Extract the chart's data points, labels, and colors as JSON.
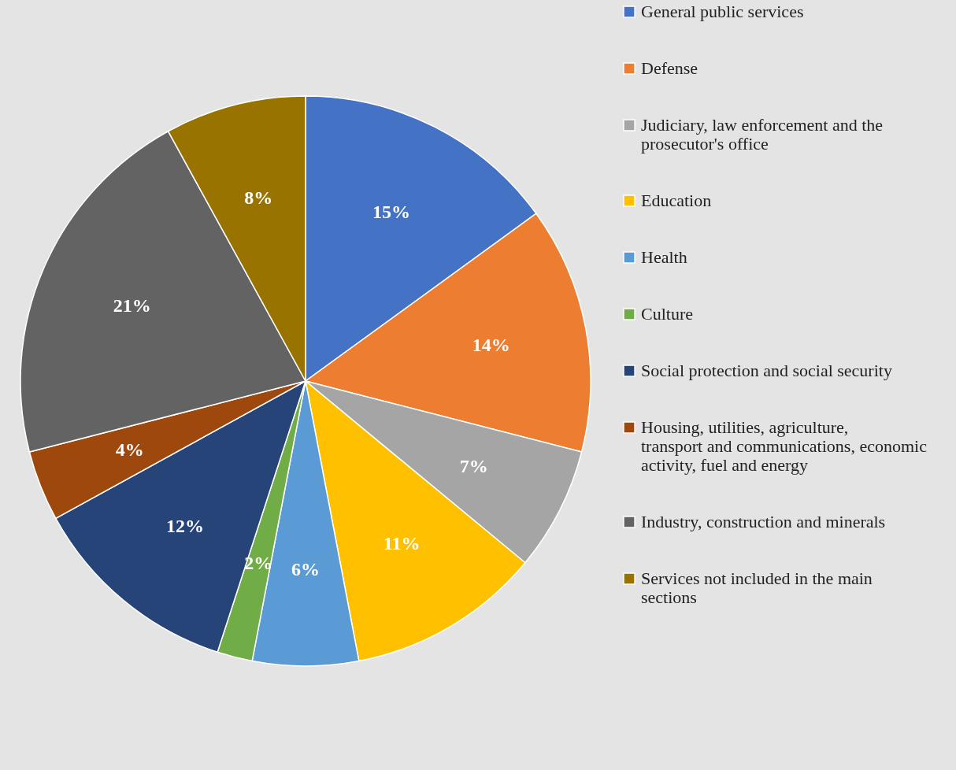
{
  "chart_data": {
    "type": "pie",
    "categories": [
      "General public services",
      "Defense",
      "Judiciary, law enforcement and the prosecutor's office",
      "Education",
      "Health",
      "Culture",
      "Social protection and social security",
      "Housing, utilities, agriculture, transport and communications, economic activity, fuel and energy",
      "Industry, construction and minerals",
      "Services not included in the main sections"
    ],
    "values": [
      15,
      14,
      7,
      11,
      6,
      2,
      12,
      4,
      21,
      8
    ],
    "value_labels": [
      "15%",
      "14%",
      "7%",
      "11%",
      "6%",
      "2%",
      "12%",
      "4%",
      "21%",
      "8%"
    ],
    "colors": [
      "#4472c4",
      "#ed7d31",
      "#a5a5a5",
      "#ffc000",
      "#5b9bd5",
      "#70ad47",
      "#264478",
      "#9e480e",
      "#636363",
      "#997300"
    ],
    "legend": "right"
  }
}
